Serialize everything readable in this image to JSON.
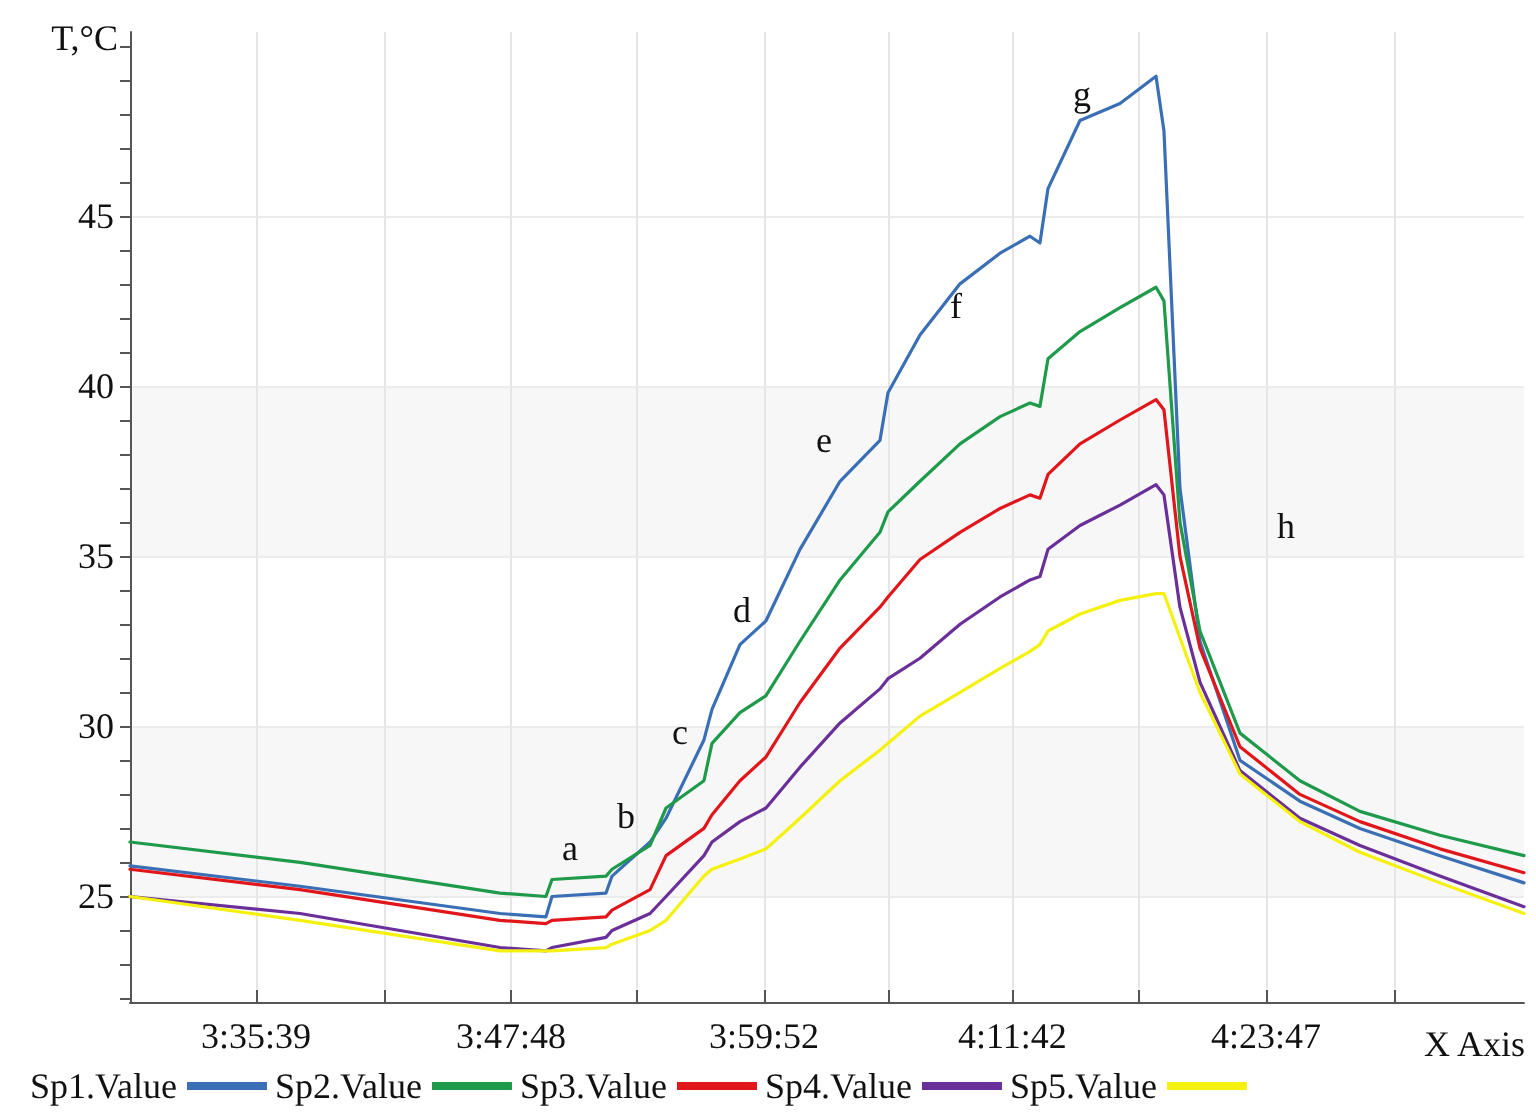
{
  "chart_data": {
    "type": "line",
    "ylabel": "T,°C",
    "xlabel": "X Axis",
    "x": [
      3.4941,
      3.6292,
      3.788,
      3.8245,
      3.8293,
      3.8722,
      3.877,
      3.9072,
      3.9199,
      3.95,
      3.9564,
      3.9786,
      3.9993,
      4.0263,
      4.0581,
      4.0898,
      4.0962,
      4.1216,
      4.1534,
      4.1852,
      4.209,
      4.2169,
      4.2233,
      4.2487,
      4.2805,
      4.3091,
      4.3154,
      4.3281,
      4.344,
      4.3758,
      4.4234,
      4.4711,
      4.5346,
      4.6014
    ],
    "series": [
      {
        "name": "Sp1.Value",
        "color": "#3a6fb5",
        "values": [
          25.9,
          25.3,
          24.5,
          24.4,
          25.0,
          25.1,
          25.6,
          26.6,
          27.3,
          29.6,
          30.5,
          32.4,
          33.1,
          35.2,
          37.2,
          38.4,
          39.8,
          41.5,
          43.0,
          43.9,
          44.4,
          44.2,
          45.8,
          47.8,
          48.3,
          49.1,
          47.5,
          37.0,
          32.5,
          29.0,
          27.8,
          27.0,
          26.2,
          25.4
        ]
      },
      {
        "name": "Sp2.Value",
        "color": "#1e9a4a",
        "values": [
          26.6,
          26.0,
          25.1,
          25.0,
          25.5,
          25.6,
          25.8,
          26.5,
          27.6,
          28.4,
          29.5,
          30.4,
          30.9,
          32.5,
          34.3,
          35.7,
          36.3,
          37.2,
          38.3,
          39.1,
          39.5,
          39.4,
          40.8,
          41.6,
          42.3,
          42.9,
          42.5,
          36.0,
          32.8,
          29.8,
          28.4,
          27.5,
          26.8,
          26.2
        ]
      },
      {
        "name": "Sp3.Value",
        "color": "#e0161b",
        "values": [
          25.8,
          25.2,
          24.3,
          24.2,
          24.3,
          24.4,
          24.6,
          25.2,
          26.2,
          27.0,
          27.4,
          28.4,
          29.1,
          30.7,
          32.3,
          33.5,
          33.8,
          34.9,
          35.7,
          36.4,
          36.8,
          36.7,
          37.4,
          38.3,
          39.0,
          39.6,
          39.3,
          35.0,
          32.3,
          29.4,
          28.0,
          27.2,
          26.4,
          25.7
        ]
      },
      {
        "name": "Sp4.Value",
        "color": "#6a2f98",
        "values": [
          25.0,
          24.5,
          23.5,
          23.4,
          23.5,
          23.8,
          24.0,
          24.5,
          25.0,
          26.2,
          26.6,
          27.2,
          27.6,
          28.8,
          30.1,
          31.1,
          31.4,
          32.0,
          33.0,
          33.8,
          34.3,
          34.4,
          35.2,
          35.9,
          36.5,
          37.1,
          36.8,
          33.5,
          31.3,
          28.7,
          27.3,
          26.5,
          25.6,
          24.7
        ]
      },
      {
        "name": "Sp5.Value",
        "color": "#f5f10f",
        "values": [
          25.0,
          24.3,
          23.4,
          23.4,
          23.4,
          23.5,
          23.6,
          24.0,
          24.3,
          25.6,
          25.8,
          26.1,
          26.4,
          27.3,
          28.4,
          29.3,
          29.5,
          30.3,
          31.0,
          31.7,
          32.2,
          32.4,
          32.8,
          33.3,
          33.7,
          33.9,
          33.9,
          32.6,
          31.0,
          28.6,
          27.2,
          26.3,
          25.4,
          24.5
        ]
      }
    ],
    "xlim": [
      3.4941,
      4.6014
    ],
    "xticks": [
      {
        "value": 3.5942,
        "label": "3:35:39"
      },
      {
        "value": 3.6955,
        "label": null
      },
      {
        "value": 3.7967,
        "label": "3:47:48"
      },
      {
        "value": 3.8972,
        "label": null
      },
      {
        "value": 3.9978,
        "label": "3:59:52"
      },
      {
        "value": 4.0964,
        "label": null
      },
      {
        "value": 4.195,
        "label": "4:11:42"
      },
      {
        "value": 4.2957,
        "label": null
      },
      {
        "value": 4.3964,
        "label": "4:23:47"
      },
      {
        "value": 4.498,
        "label": null
      }
    ],
    "ylim": [
      21.9,
      50.4
    ],
    "yticks": [
      {
        "value": 22,
        "label": null
      },
      {
        "value": 23,
        "label": null
      },
      {
        "value": 24,
        "label": null
      },
      25,
      {
        "value": 26,
        "label": null
      },
      {
        "value": 27,
        "label": null
      },
      {
        "value": 28,
        "label": null
      },
      {
        "value": 29,
        "label": null
      },
      30,
      {
        "value": 31,
        "label": null
      },
      {
        "value": 32,
        "label": null
      },
      {
        "value": 33,
        "label": null
      },
      {
        "value": 34,
        "label": null
      },
      35,
      {
        "value": 36,
        "label": null
      },
      {
        "value": 37,
        "label": null
      },
      {
        "value": 38,
        "label": null
      },
      {
        "value": 39,
        "label": null
      },
      40,
      {
        "value": 41,
        "label": null
      },
      {
        "value": 42,
        "label": null
      },
      {
        "value": 43,
        "label": null
      },
      {
        "value": 44,
        "label": null
      },
      45,
      {
        "value": 46,
        "label": null
      },
      {
        "value": 47,
        "label": null
      },
      {
        "value": 48,
        "label": null
      },
      {
        "value": 49,
        "label": null
      },
      {
        "value": 50,
        "label": null
      }
    ],
    "annotations": [
      "a",
      "b",
      "c",
      "d",
      "e",
      "f",
      "g",
      "h"
    ],
    "grid": true,
    "legend": "bottom",
    "marker": "none",
    "line_style": "solid"
  }
}
